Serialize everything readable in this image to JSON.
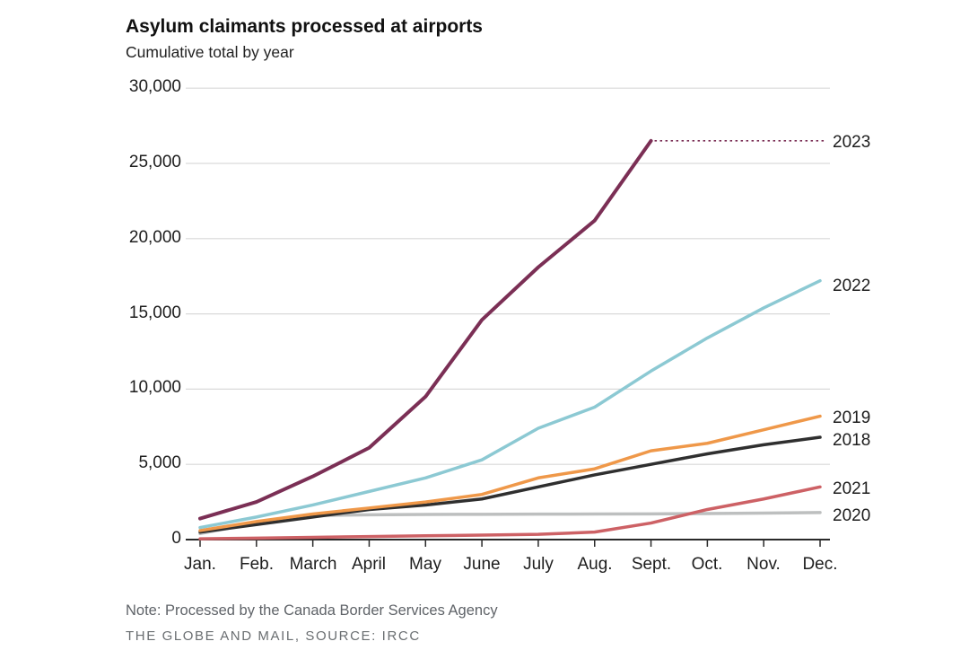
{
  "header": {
    "title": "Asylum claimants processed at airports",
    "subtitle": "Cumulative total by year"
  },
  "footer": {
    "note": "Note: Processed by the Canada Border Services Agency",
    "credit": "THE GLOBE AND MAIL, SOURCE: IRCC"
  },
  "chart_data": {
    "type": "line",
    "title": "Asylum claimants processed at airports",
    "subtitle": "Cumulative total by year",
    "xlabel": "",
    "ylabel": "",
    "ylim": [
      0,
      30000
    ],
    "grid": true,
    "legend_position": "right-edge-labels",
    "categories": [
      "Jan.",
      "Feb.",
      "March",
      "April",
      "May",
      "June",
      "July",
      "Aug.",
      "Sept.",
      "Oct.",
      "Nov.",
      "Dec."
    ],
    "y_ticks": [
      {
        "value": 0,
        "label": "0"
      },
      {
        "value": 5000,
        "label": "5,000"
      },
      {
        "value": 10000,
        "label": "10,000"
      },
      {
        "value": 15000,
        "label": "15,000"
      },
      {
        "value": 20000,
        "label": "20,000"
      },
      {
        "value": 25000,
        "label": "25,000"
      },
      {
        "value": 30000,
        "label": "30,000"
      }
    ],
    "series": [
      {
        "name": "2023",
        "color": "#7b2f55",
        "width": 4,
        "values": [
          1400,
          2500,
          4200,
          6100,
          9500,
          14600,
          18100,
          21200,
          26500,
          null,
          null,
          null
        ],
        "projection": {
          "style": "dotted",
          "value": 26500,
          "from_month": "Sept.",
          "to_month": "Dec."
        }
      },
      {
        "name": "2022",
        "color": "#8cc9d3",
        "width": 3.5,
        "values": [
          800,
          1500,
          2300,
          3200,
          4100,
          5300,
          7400,
          8800,
          11200,
          13400,
          15400,
          17200
        ]
      },
      {
        "name": "2019",
        "color": "#ef9849",
        "width": 3.5,
        "values": [
          600,
          1200,
          1700,
          2100,
          2500,
          3000,
          4100,
          4700,
          5900,
          6400,
          7300,
          8200
        ]
      },
      {
        "name": "2018",
        "color": "#2f2f2f",
        "width": 3.5,
        "values": [
          500,
          1000,
          1500,
          2000,
          2300,
          2700,
          3500,
          4300,
          5000,
          5700,
          6300,
          6800
        ]
      },
      {
        "name": "2021",
        "color": "#cd6165",
        "width": 3.5,
        "values": [
          50,
          100,
          150,
          200,
          250,
          300,
          350,
          500,
          1100,
          2000,
          2700,
          3500
        ]
      },
      {
        "name": "2020",
        "color": "#bdbfbf",
        "width": 3.5,
        "values": [
          400,
          1100,
          1600,
          1650,
          1670,
          1680,
          1690,
          1700,
          1710,
          1730,
          1760,
          1800
        ]
      }
    ],
    "colors": {
      "grid": "#d9d9d9",
      "axis": "#2a2a2a",
      "text": "#1d1d1d"
    }
  }
}
